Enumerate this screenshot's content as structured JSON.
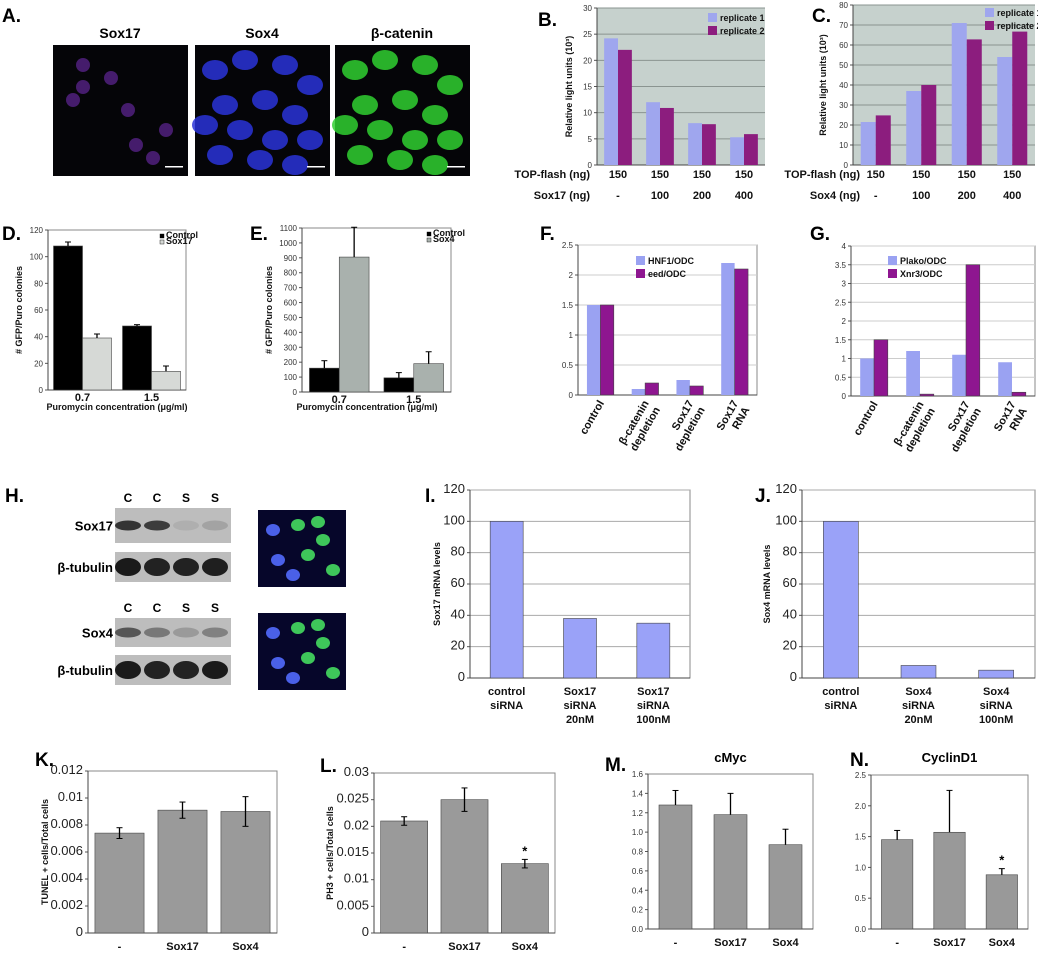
{
  "panels": {
    "A": "A.",
    "B": "B.",
    "C": "C.",
    "D": "D.",
    "E": "E.",
    "F": "F.",
    "G": "G.",
    "H": "H.",
    "I": "I.",
    "J": "J.",
    "K": "K.",
    "L": "L.",
    "M": "M.",
    "N": "N."
  },
  "panel_a": {
    "titles": [
      "Sox17",
      "Sox4",
      "β-catenin"
    ],
    "colors": [
      "#7a2fc0",
      "#2a34d8",
      "#30d030"
    ]
  },
  "panel_h": {
    "lanes": [
      "C",
      "C",
      "S",
      "S"
    ],
    "blots": [
      {
        "label": "Sox17",
        "intensity": [
          0.8,
          0.75,
          0.08,
          0.15
        ]
      },
      {
        "label": "β-tubulin",
        "intensity": [
          0.95,
          0.9,
          0.9,
          0.92
        ]
      },
      {
        "label": "Sox4",
        "intensity": [
          0.6,
          0.4,
          0.2,
          0.35
        ]
      },
      {
        "label": "β-tubulin",
        "intensity": [
          0.95,
          0.9,
          0.9,
          0.95
        ]
      }
    ]
  },
  "chart_data": [
    {
      "type": "bar",
      "panel": "B",
      "ylabel": "Relative light units (10³)",
      "ylim": [
        0,
        30
      ],
      "yticks": [
        0,
        5,
        10,
        15,
        20,
        25,
        30
      ],
      "grid": true,
      "legend": "top-right",
      "categories": [
        "-",
        "100",
        "200",
        "400"
      ],
      "x_rows": [
        {
          "label": "TOP-flash (ng)",
          "values": [
            "150",
            "150",
            "150",
            "150"
          ]
        },
        {
          "label": "Sox17 (ng)",
          "values": [
            "-",
            "100",
            "200",
            "400"
          ]
        }
      ],
      "series": [
        {
          "name": "replicate 1",
          "color": "#9fa6ee",
          "values": [
            24.2,
            12,
            8,
            5.3
          ]
        },
        {
          "name": "replicate 2",
          "color": "#8c1d7e",
          "values": [
            22,
            10.9,
            7.8,
            5.9
          ]
        }
      ]
    },
    {
      "type": "bar",
      "panel": "C",
      "ylabel": "Relative light units (10³)",
      "ylim": [
        0,
        80
      ],
      "yticks": [
        0,
        10,
        20,
        30,
        40,
        50,
        60,
        70,
        80
      ],
      "grid": true,
      "legend": "top-right",
      "categories": [
        "-",
        "100",
        "200",
        "400"
      ],
      "x_rows": [
        {
          "label": "TOP-flash (ng)",
          "values": [
            "150",
            "150",
            "150",
            "150"
          ]
        },
        {
          "label": "Sox4 (ng)",
          "values": [
            "-",
            "100",
            "200",
            "400"
          ]
        }
      ],
      "series": [
        {
          "name": "replicate 1",
          "color": "#9fa6ee",
          "values": [
            21.5,
            37,
            71,
            54
          ]
        },
        {
          "name": "replicate 2",
          "color": "#8c1d7e",
          "values": [
            24.8,
            40,
            62.8,
            66.7
          ]
        }
      ]
    },
    {
      "type": "bar",
      "panel": "D",
      "ylabel": "# GFP/Puro colonies",
      "xlabel": "Puromycin concentration (μg/ml)",
      "ylim": [
        0,
        120
      ],
      "yticks": [
        0,
        20,
        40,
        60,
        80,
        100,
        120
      ],
      "grid": false,
      "legend": "top-right",
      "categories": [
        "0.7",
        "1.5"
      ],
      "series": [
        {
          "name": "Control",
          "color": "#000000",
          "values": [
            108,
            48
          ],
          "errors": [
            3,
            1
          ]
        },
        {
          "name": "Sox17",
          "color": "#d6d9d6",
          "values": [
            39,
            14
          ],
          "errors": [
            3,
            4
          ]
        }
      ]
    },
    {
      "type": "bar",
      "panel": "E",
      "ylabel": "# GFP/Puro colonies",
      "xlabel": "Puromycin concentration (μg/ml)",
      "ylim": [
        0,
        1100
      ],
      "yticks": [
        0,
        100,
        200,
        300,
        400,
        500,
        600,
        700,
        800,
        900,
        1000,
        1100
      ],
      "grid": false,
      "legend": "top-right",
      "categories": [
        "0.7",
        "1.5"
      ],
      "series": [
        {
          "name": "Control",
          "color": "#000000",
          "values": [
            160,
            95
          ],
          "errors": [
            50,
            35
          ]
        },
        {
          "name": "Sox4",
          "color": "#a9b1ad",
          "values": [
            905,
            190
          ],
          "errors": [
            200,
            80
          ]
        }
      ]
    },
    {
      "type": "bar",
      "panel": "F",
      "ylim": [
        0,
        2.5
      ],
      "yticks": [
        0,
        0.5,
        1,
        1.5,
        2,
        2.5
      ],
      "grid": true,
      "legend": "top",
      "categories": [
        [
          "control"
        ],
        [
          "β-catenin",
          "depletion"
        ],
        [
          "Sox17",
          "depletion"
        ],
        [
          "Sox17",
          "RNA"
        ]
      ],
      "series": [
        {
          "name": "HNF1/ODC",
          "color": "#9aa2f2",
          "values": [
            1.5,
            0.1,
            0.25,
            2.2
          ]
        },
        {
          "name": "eed/ODC",
          "color": "#8e1690",
          "values": [
            1.5,
            0.2,
            0.15,
            2.1
          ]
        }
      ]
    },
    {
      "type": "bar",
      "panel": "G",
      "ylim": [
        0,
        4
      ],
      "yticks": [
        0,
        0.5,
        1,
        1.5,
        2,
        2.5,
        3,
        3.5,
        4
      ],
      "grid": true,
      "legend": "top-left",
      "categories": [
        [
          "control"
        ],
        [
          "β-catenin",
          "depletion"
        ],
        [
          "Sox17",
          "depletion"
        ],
        [
          "Sox17",
          "RNA"
        ]
      ],
      "series": [
        {
          "name": "Plako/ODC",
          "color": "#9aa2f2",
          "values": [
            1,
            1.2,
            1.1,
            0.9
          ]
        },
        {
          "name": "Xnr3/ODC",
          "color": "#8e1690",
          "values": [
            1.5,
            0.05,
            3.5,
            0.1
          ]
        }
      ]
    },
    {
      "type": "bar",
      "panel": "I",
      "ylabel": "Sox17 mRNA levels",
      "ylim": [
        0,
        120
      ],
      "yticks": [
        0,
        20,
        40,
        60,
        80,
        100,
        120
      ],
      "grid": true,
      "categories": [
        [
          "control",
          "siRNA"
        ],
        [
          "Sox17",
          "siRNA",
          "20nM"
        ],
        [
          "Sox17",
          "siRNA",
          "100nM"
        ]
      ],
      "series": [
        {
          "color": "#9aa2f8",
          "values": [
            100,
            38,
            35
          ]
        }
      ]
    },
    {
      "type": "bar",
      "panel": "J",
      "ylabel": "Sox4 mRNA levels",
      "ylim": [
        0,
        120
      ],
      "yticks": [
        0,
        20,
        40,
        60,
        80,
        100,
        120
      ],
      "grid": true,
      "categories": [
        [
          "control",
          "siRNA"
        ],
        [
          "Sox4",
          "siRNA",
          "20nM"
        ],
        [
          "Sox4",
          "siRNA",
          "100nM"
        ]
      ],
      "series": [
        {
          "color": "#9aa2f8",
          "values": [
            100,
            8,
            5
          ]
        }
      ]
    },
    {
      "type": "bar",
      "panel": "K",
      "ylabel": "TUNEL + cells/Total cells",
      "ylim": [
        0,
        0.012
      ],
      "yticks": [
        0,
        0.002,
        0.004,
        0.006,
        0.008,
        0.01,
        0.012
      ],
      "grid": false,
      "categories": [
        "-",
        "Sox17",
        "Sox4"
      ],
      "series": [
        {
          "color": "#9a9a9a",
          "values": [
            0.0074,
            0.0091,
            0.009
          ],
          "errors": [
            0.0004,
            0.0006,
            0.0011
          ]
        }
      ]
    },
    {
      "type": "bar",
      "panel": "L",
      "ylabel": "PH3 + cells/Total cells",
      "ylim": [
        0,
        0.03
      ],
      "yticks": [
        0,
        0.005,
        0.01,
        0.015,
        0.02,
        0.025,
        0.03
      ],
      "grid": false,
      "categories": [
        "-",
        "Sox17",
        "Sox4"
      ],
      "annotations": [
        "",
        "",
        "*"
      ],
      "series": [
        {
          "color": "#9a9a9a",
          "values": [
            0.021,
            0.025,
            0.013
          ],
          "errors": [
            0.0008,
            0.0022,
            0.0008
          ]
        }
      ]
    },
    {
      "type": "bar",
      "panel": "M",
      "title": "cMyc",
      "ylim": [
        0,
        1.6
      ],
      "yticks": [
        "0.0",
        "0.2",
        "0.4",
        "0.6",
        "0.8",
        "1.0",
        "1.2",
        "1.4",
        "1.6"
      ],
      "grid": false,
      "categories": [
        "-",
        "Sox17",
        "Sox4"
      ],
      "series": [
        {
          "color": "#999999",
          "values": [
            1.28,
            1.18,
            0.87
          ],
          "errors": [
            0.15,
            0.22,
            0.16
          ]
        }
      ]
    },
    {
      "type": "bar",
      "panel": "N",
      "title": "CyclinD1",
      "ylim": [
        0,
        2.5
      ],
      "yticks": [
        "0.0",
        "0.5",
        "1.0",
        "1.5",
        "2.0",
        "2.5"
      ],
      "grid": false,
      "categories": [
        "-",
        "Sox17",
        "Sox4"
      ],
      "annotations": [
        "",
        "",
        "*"
      ],
      "series": [
        {
          "color": "#999999",
          "values": [
            1.45,
            1.57,
            0.88
          ],
          "errors": [
            0.15,
            0.68,
            0.1
          ]
        }
      ]
    }
  ]
}
